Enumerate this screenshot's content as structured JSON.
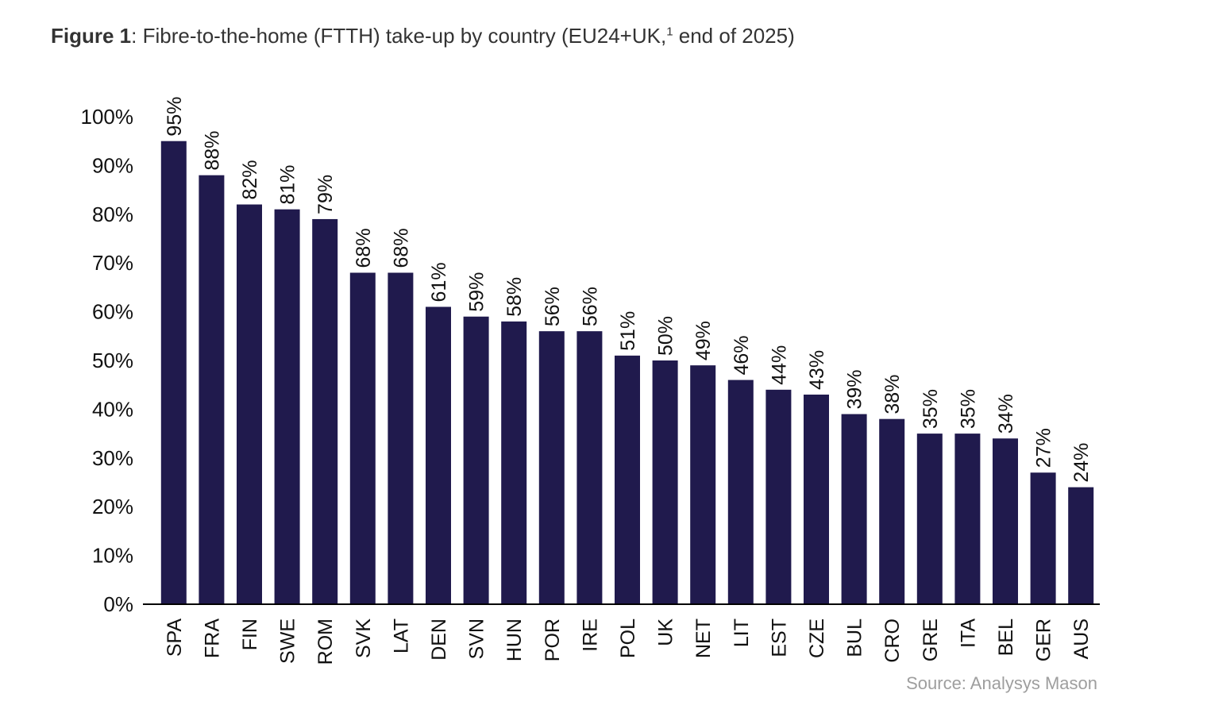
{
  "figure": {
    "label": "Figure 1",
    "title_text": ": Fibre-to-the-home (FTTH) take-up by country (EU24+UK,",
    "footnote_mark": "1",
    "title_end": " end of 2025)"
  },
  "source": "Source: Analysys Mason",
  "chart_data": {
    "type": "bar",
    "categories": [
      "SPA",
      "FRA",
      "FIN",
      "SWE",
      "ROM",
      "SVK",
      "LAT",
      "DEN",
      "SVN",
      "HUN",
      "POR",
      "IRE",
      "POL",
      "UK",
      "NET",
      "LIT",
      "EST",
      "CZE",
      "BUL",
      "CRO",
      "GRE",
      "ITA",
      "BEL",
      "GER",
      "AUS"
    ],
    "values": [
      95,
      88,
      82,
      81,
      79,
      68,
      68,
      61,
      59,
      58,
      56,
      56,
      51,
      50,
      49,
      46,
      44,
      43,
      39,
      38,
      35,
      35,
      34,
      27,
      24
    ],
    "data_labels": [
      "95%",
      "88%",
      "82%",
      "81%",
      "79%",
      "68%",
      "68%",
      "61%",
      "59%",
      "58%",
      "56%",
      "56%",
      "51%",
      "50%",
      "49%",
      "46%",
      "44%",
      "43%",
      "39%",
      "38%",
      "35%",
      "35%",
      "34%",
      "27%",
      "24%"
    ],
    "ytick_labels": [
      "0%",
      "10%",
      "20%",
      "30%",
      "40%",
      "50%",
      "60%",
      "70%",
      "80%",
      "90%",
      "100%"
    ],
    "ylim": [
      0,
      100
    ],
    "bar_color": "#201a4d",
    "grid": false,
    "legend": false
  }
}
